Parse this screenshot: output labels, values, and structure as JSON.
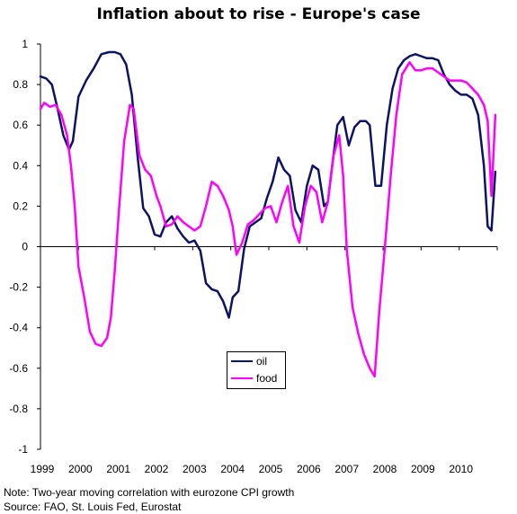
{
  "chart_data": {
    "type": "line",
    "title": "Inflation about to rise - Europe's case",
    "xlabel": "",
    "ylabel": "",
    "ylim": [
      -1,
      1
    ],
    "xlim": [
      1999.0,
      2011.0
    ],
    "y_ticks": [
      1,
      0.8,
      0.6,
      0.4,
      0.2,
      0,
      -0.2,
      -0.4,
      -0.6,
      -0.8,
      -1
    ],
    "y_tick_labels": [
      "1",
      "0.8",
      "0.6",
      "0.4",
      "0.2",
      "0",
      "-0.2",
      "-0.4",
      "-0.6",
      "-0.8",
      "-1"
    ],
    "x_tick_labels": [
      "1999",
      "2000",
      "2001",
      "2002",
      "2003",
      "2004",
      "2005",
      "2006",
      "2007",
      "2008",
      "2009",
      "2010"
    ],
    "legend_position": "center-bottom",
    "grid": false,
    "series": [
      {
        "name": "oil",
        "color": "#0b1464",
        "x": [
          1999.0,
          1999.15,
          1999.3,
          1999.45,
          1999.6,
          1999.75,
          1999.85,
          2000.0,
          2000.2,
          2000.4,
          2000.6,
          2000.8,
          2000.95,
          2001.1,
          2001.25,
          2001.4,
          2001.55,
          2001.7,
          2001.85,
          2002.0,
          2002.15,
          2002.3,
          2002.45,
          2002.6,
          2002.75,
          2002.9,
          2003.05,
          2003.2,
          2003.35,
          2003.5,
          2003.65,
          2003.8,
          2003.95,
          2004.05,
          2004.2,
          2004.35,
          2004.5,
          2004.65,
          2004.8,
          2004.95,
          2005.1,
          2005.25,
          2005.4,
          2005.55,
          2005.7,
          2005.85,
          2006.0,
          2006.15,
          2006.3,
          2006.45,
          2006.55,
          2006.65,
          2006.8,
          2006.95,
          2007.1,
          2007.25,
          2007.4,
          2007.55,
          2007.65,
          2007.8,
          2007.95,
          2008.1,
          2008.25,
          2008.4,
          2008.55,
          2008.7,
          2008.85,
          2009.0,
          2009.15,
          2009.3,
          2009.45,
          2009.6,
          2009.75,
          2009.9,
          2010.05,
          2010.2,
          2010.35,
          2010.5,
          2010.65,
          2010.75,
          2010.85,
          2010.95
        ],
        "values": [
          0.84,
          0.83,
          0.8,
          0.68,
          0.55,
          0.48,
          0.52,
          0.74,
          0.82,
          0.88,
          0.95,
          0.96,
          0.96,
          0.95,
          0.9,
          0.75,
          0.45,
          0.19,
          0.15,
          0.06,
          0.05,
          0.12,
          0.15,
          0.09,
          0.05,
          0.02,
          0.03,
          -0.02,
          -0.18,
          -0.21,
          -0.22,
          -0.27,
          -0.35,
          -0.25,
          -0.22,
          -0.01,
          0.1,
          0.12,
          0.14,
          0.24,
          0.32,
          0.44,
          0.38,
          0.35,
          0.18,
          0.12,
          0.3,
          0.4,
          0.38,
          0.2,
          0.22,
          0.38,
          0.6,
          0.64,
          0.5,
          0.59,
          0.62,
          0.62,
          0.6,
          0.3,
          0.3,
          0.6,
          0.78,
          0.88,
          0.92,
          0.94,
          0.95,
          0.94,
          0.93,
          0.93,
          0.92,
          0.85,
          0.8,
          0.77,
          0.75,
          0.75,
          0.73,
          0.65,
          0.4,
          0.1,
          0.08,
          0.37
        ]
      },
      {
        "name": "food",
        "color": "#ff00ff",
        "x": [
          1999.0,
          1999.1,
          1999.25,
          1999.4,
          1999.55,
          1999.7,
          1999.8,
          1999.9,
          2000.0,
          2000.15,
          2000.3,
          2000.45,
          2000.6,
          2000.75,
          2000.85,
          2000.95,
          2001.05,
          2001.2,
          2001.35,
          2001.45,
          2001.6,
          2001.75,
          2001.9,
          2002.05,
          2002.15,
          2002.3,
          2002.45,
          2002.6,
          2002.75,
          2002.9,
          2003.05,
          2003.2,
          2003.35,
          2003.5,
          2003.65,
          2003.8,
          2003.95,
          2004.05,
          2004.15,
          2004.3,
          2004.45,
          2004.6,
          2004.75,
          2004.9,
          2005.05,
          2005.2,
          2005.35,
          2005.5,
          2005.65,
          2005.8,
          2005.95,
          2006.1,
          2006.25,
          2006.4,
          2006.55,
          2006.7,
          2006.85,
          2006.95,
          2007.05,
          2007.2,
          2007.35,
          2007.5,
          2007.65,
          2007.78,
          2007.9,
          2008.05,
          2008.2,
          2008.35,
          2008.5,
          2008.6,
          2008.7,
          2008.85,
          2009.0,
          2009.15,
          2009.3,
          2009.45,
          2009.6,
          2009.75,
          2009.9,
          2010.05,
          2010.2,
          2010.35,
          2010.5,
          2010.65,
          2010.75,
          2010.85,
          2010.95
        ],
        "values": [
          0.68,
          0.71,
          0.69,
          0.7,
          0.65,
          0.55,
          0.4,
          0.2,
          -0.1,
          -0.25,
          -0.42,
          -0.48,
          -0.49,
          -0.45,
          -0.35,
          -0.12,
          0.15,
          0.52,
          0.7,
          0.68,
          0.45,
          0.38,
          0.35,
          0.25,
          0.2,
          0.1,
          0.11,
          0.15,
          0.12,
          0.1,
          0.08,
          0.1,
          0.2,
          0.32,
          0.3,
          0.25,
          0.18,
          0.1,
          -0.04,
          0.02,
          0.11,
          0.13,
          0.16,
          0.19,
          0.2,
          0.12,
          0.22,
          0.3,
          0.1,
          0.02,
          0.2,
          0.3,
          0.27,
          0.12,
          0.22,
          0.45,
          0.55,
          0.35,
          -0.02,
          -0.3,
          -0.43,
          -0.53,
          -0.6,
          -0.64,
          -0.32,
          0.0,
          0.35,
          0.65,
          0.85,
          0.88,
          0.91,
          0.87,
          0.87,
          0.88,
          0.88,
          0.86,
          0.84,
          0.82,
          0.82,
          0.82,
          0.81,
          0.78,
          0.75,
          0.7,
          0.62,
          0.25,
          0.65
        ]
      }
    ]
  },
  "notes": {
    "line1": "Note: Two-year moving correlation with eurozone CPI growth",
    "line2": "Source: FAO, St. Louis Fed, Eurostat"
  }
}
